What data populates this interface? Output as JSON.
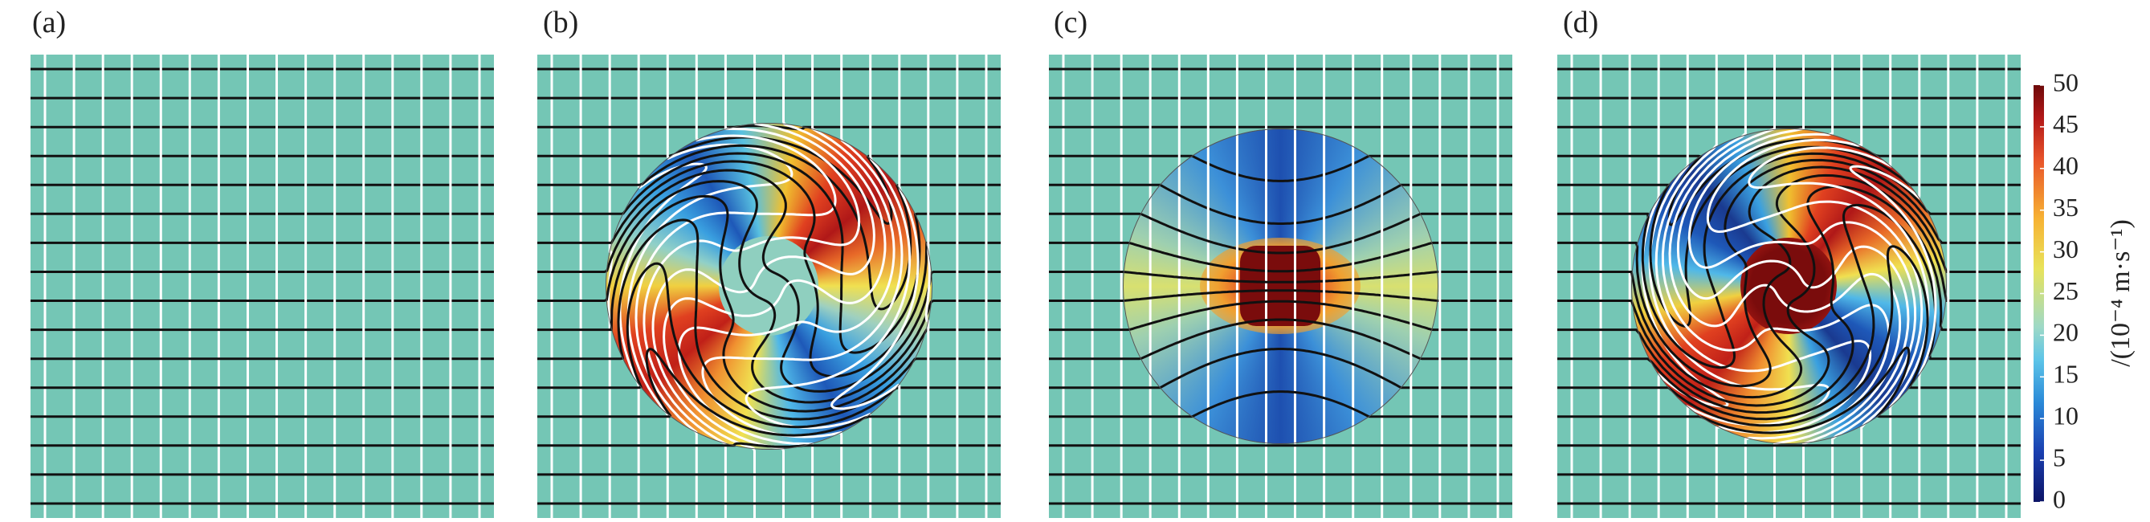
{
  "panels": [
    {
      "label": "(a)"
    },
    {
      "label": "(b)"
    },
    {
      "label": "(c)"
    },
    {
      "label": "(d)"
    }
  ],
  "colorbar": {
    "label": "/(10⁻⁴ m·s⁻¹)",
    "lim": [
      0,
      50
    ],
    "ticks": [
      0,
      5,
      10,
      15,
      20,
      25,
      30,
      35,
      40,
      45,
      50
    ]
  }
}
